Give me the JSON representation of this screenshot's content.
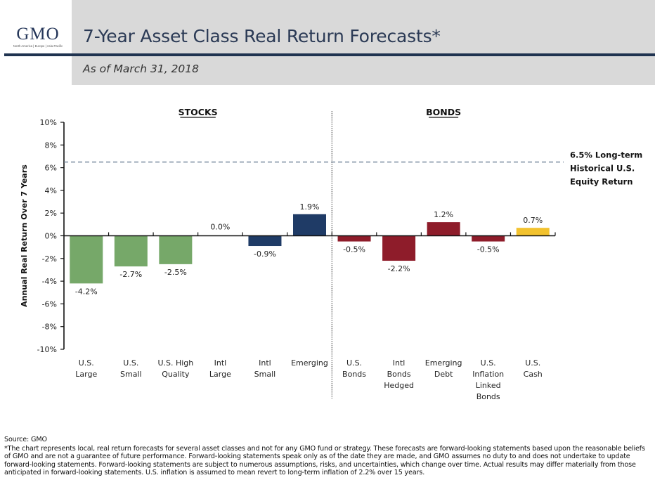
{
  "header": {
    "logo": "GMO",
    "logo_tagline": "North America | Europe | Asia-Pacific",
    "title": "7-Year Asset Class Real Return Forecasts*",
    "subtitle": "As of March 31, 2018"
  },
  "colors": {
    "header_band": "#d9d9d9",
    "header_rule": "#1f3350",
    "stocks_us": "#76a869",
    "stocks_intl": "#1f3b66",
    "bonds": "#8e1c2a",
    "cash": "#f2c22e",
    "reference_line": "#6a7f94"
  },
  "chart_data": {
    "type": "bar",
    "title": "7-Year Asset Class Real Return Forecasts*",
    "ylabel": "Annual Real Return Over 7 Years",
    "xlabel": "",
    "ylim": [
      -10,
      10
    ],
    "yticks": [
      10,
      8,
      6,
      4,
      2,
      0,
      -2,
      -4,
      -6,
      -8,
      -10
    ],
    "ytick_format": "%",
    "grid": false,
    "groups": [
      {
        "name": "STOCKS",
        "categories": [
          0,
          1,
          2,
          3,
          4,
          5
        ]
      },
      {
        "name": "BONDS",
        "categories": [
          6,
          7,
          8,
          9,
          10
        ]
      }
    ],
    "categories": [
      [
        "U.S.",
        "Large"
      ],
      [
        "U.S.",
        "Small"
      ],
      [
        "U.S. High",
        "Quality"
      ],
      [
        "Intl",
        "Large"
      ],
      [
        "Intl",
        "Small"
      ],
      [
        "Emerging"
      ],
      [
        "U.S.",
        "Bonds"
      ],
      [
        "Intl",
        "Bonds",
        "Hedged"
      ],
      [
        "Emerging",
        "Debt"
      ],
      [
        "U.S.",
        "Inflation",
        "Linked",
        "Bonds"
      ],
      [
        "U.S.",
        "Cash"
      ]
    ],
    "values": [
      -4.2,
      -2.7,
      -2.5,
      0.0,
      -0.9,
      1.9,
      -0.5,
      -2.2,
      1.2,
      -0.5,
      0.7
    ],
    "value_labels": [
      "-4.2%",
      "-2.7%",
      "-2.5%",
      "0.0%",
      "-0.9%",
      "1.9%",
      "-0.5%",
      "-2.2%",
      "1.2%",
      "-0.5%",
      "0.7%"
    ],
    "bar_colors": [
      "#76a869",
      "#76a869",
      "#76a869",
      "#1f3b66",
      "#1f3b66",
      "#1f3b66",
      "#8e1c2a",
      "#8e1c2a",
      "#8e1c2a",
      "#8e1c2a",
      "#f2c22e"
    ],
    "reference_line": {
      "value": 6.5,
      "style": "dashed",
      "label": [
        "6.5% Long-term",
        "Historical U.S.",
        "Equity Return"
      ]
    }
  },
  "footer": {
    "source": "Source: GMO",
    "disclaimer": "*The chart represents local, real return forecasts for several asset classes and not for any GMO fund or strategy.  These forecasts are forward-looking statements based upon the reasonable beliefs of GMO and are not a guarantee of future performance.  Forward-looking statements speak only as of the date they are made, and GMO assumes no duty to and does not undertake to update forward-looking statements.  Forward-looking statements are subject to numerous assumptions, risks, and uncertainties, which change over time.  Actual results may differ materially from those anticipated in forward-looking statements. U.S. inflation is assumed to mean revert to long-term inflation of 2.2% over 15 years."
  }
}
